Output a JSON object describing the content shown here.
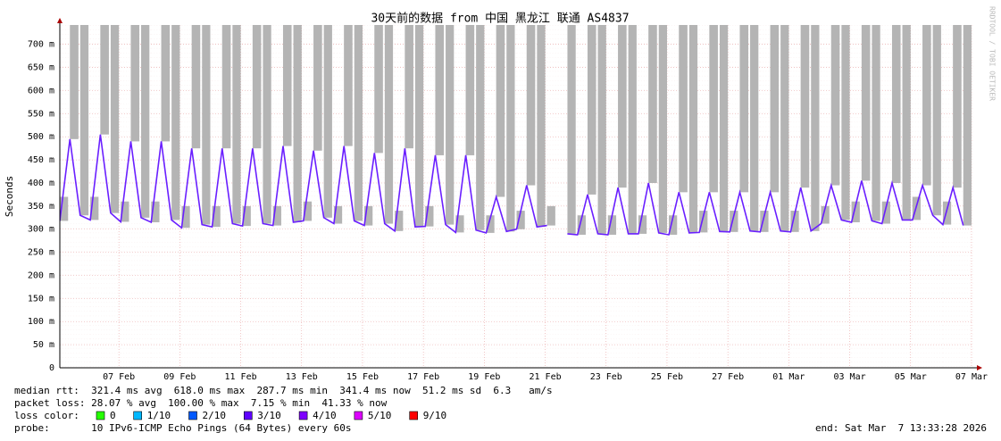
{
  "chart_data": {
    "type": "smoke",
    "title": "30天前的数据 from 中国 黑龙江 联通 AS4837",
    "ylabel": "Seconds",
    "credit": "RRDTOOL / TOBI OETIKER",
    "line_color": "#6a1fff",
    "smoke_color": "#b4b4b4",
    "grid": true,
    "ylim": [
      0,
      0.742
    ],
    "yticks": [
      0,
      {
        "value": 0.05,
        "label": "50 m"
      },
      {
        "value": 0.1,
        "label": "100 m"
      },
      {
        "value": 0.15,
        "label": "150 m"
      },
      {
        "value": 0.2,
        "label": "200 m"
      },
      {
        "value": 0.25,
        "label": "250 m"
      },
      {
        "value": 0.3,
        "label": "300 m"
      },
      {
        "value": 0.35,
        "label": "350 m"
      },
      {
        "value": 0.4,
        "label": "400 m"
      },
      {
        "value": 0.45,
        "label": "450 m"
      },
      {
        "value": 0.5,
        "label": "500 m"
      },
      {
        "value": 0.55,
        "label": "550 m"
      },
      {
        "value": 0.6,
        "label": "600 m"
      },
      {
        "value": 0.65,
        "label": "650 m"
      },
      {
        "value": 0.7,
        "label": "700 m"
      }
    ],
    "xlim": [
      0,
      30
    ],
    "xticks": [
      {
        "value": 1.94,
        "label": "07 Feb"
      },
      {
        "value": 3.94,
        "label": "09 Feb"
      },
      {
        "value": 5.94,
        "label": "11 Feb"
      },
      {
        "value": 7.94,
        "label": "13 Feb"
      },
      {
        "value": 9.94,
        "label": "15 Feb"
      },
      {
        "value": 11.94,
        "label": "17 Feb"
      },
      {
        "value": 13.94,
        "label": "19 Feb"
      },
      {
        "value": 15.94,
        "label": "21 Feb"
      },
      {
        "value": 17.94,
        "label": "23 Feb"
      },
      {
        "value": 19.94,
        "label": "25 Feb"
      },
      {
        "value": 21.94,
        "label": "27 Feb"
      },
      {
        "value": 23.94,
        "label": "01 Mar"
      },
      {
        "value": 25.94,
        "label": "03 Mar"
      },
      {
        "value": 27.94,
        "label": "05 Mar"
      },
      {
        "value": 29.94,
        "label": "07 Mar"
      }
    ],
    "x": [
      0,
      0.33,
      0.67,
      1,
      1.33,
      1.67,
      2,
      2.33,
      2.67,
      3,
      3.33,
      3.67,
      4,
      4.33,
      4.67,
      5,
      5.33,
      5.67,
      6,
      6.33,
      6.67,
      7,
      7.33,
      7.67,
      8,
      8.33,
      8.67,
      9,
      9.33,
      9.67,
      10,
      10.33,
      10.67,
      11,
      11.33,
      11.67,
      12,
      12.33,
      12.67,
      13,
      13.33,
      13.67,
      14,
      14.33,
      14.67,
      15,
      15.33,
      15.67,
      16,
      16.33,
      16.67,
      17,
      17.33,
      17.67,
      18,
      18.33,
      18.67,
      19,
      19.33,
      19.67,
      20,
      20.33,
      20.67,
      21,
      21.33,
      21.67,
      22,
      22.33,
      22.67,
      23,
      23.33,
      23.67,
      24,
      24.33,
      24.67,
      25,
      25.33,
      25.67,
      26,
      26.33,
      26.67,
      27,
      27.33,
      27.67,
      28,
      28.33,
      28.67,
      29,
      29.33,
      29.67
    ],
    "values": [
      0.318,
      0.495,
      0.33,
      0.32,
      0.505,
      0.335,
      0.316,
      0.49,
      0.325,
      0.315,
      0.49,
      0.32,
      0.303,
      0.475,
      0.31,
      0.305,
      0.475,
      0.312,
      0.307,
      0.475,
      0.312,
      0.308,
      0.48,
      0.315,
      0.318,
      0.47,
      0.325,
      0.312,
      0.48,
      0.318,
      0.308,
      0.465,
      0.312,
      0.296,
      0.475,
      0.305,
      0.306,
      0.46,
      0.31,
      0.293,
      0.46,
      0.298,
      0.292,
      0.37,
      0.295,
      0.3,
      0.395,
      0.305,
      0.308,
      null,
      0.29,
      0.288,
      0.375,
      0.29,
      0.288,
      0.39,
      0.29,
      0.29,
      0.4,
      0.292,
      0.288,
      0.38,
      0.292,
      0.293,
      0.38,
      0.295,
      0.294,
      0.38,
      0.296,
      0.294,
      0.38,
      0.296,
      0.294,
      0.39,
      0.296,
      0.312,
      0.395,
      0.32,
      0.315,
      0.405,
      0.318,
      0.312,
      0.4,
      0.32,
      0.32,
      0.395,
      0.33,
      0.31,
      0.39,
      0.308
    ],
    "max": [
      0.37,
      0.8,
      0.8,
      0.37,
      0.8,
      0.8,
      0.36,
      0.8,
      0.8,
      0.36,
      0.8,
      0.8,
      0.35,
      0.8,
      0.8,
      0.35,
      0.8,
      0.8,
      0.35,
      0.8,
      0.8,
      0.35,
      0.8,
      0.8,
      0.36,
      0.8,
      0.8,
      0.35,
      0.8,
      0.8,
      0.35,
      0.8,
      0.8,
      0.34,
      0.8,
      0.8,
      0.35,
      0.8,
      0.8,
      0.33,
      0.8,
      0.8,
      0.33,
      0.8,
      0.8,
      0.34,
      0.8,
      0.8,
      0.35,
      null,
      0.8,
      0.33,
      0.8,
      0.8,
      0.33,
      0.8,
      0.8,
      0.33,
      0.8,
      0.8,
      0.33,
      0.8,
      0.8,
      0.34,
      0.8,
      0.8,
      0.34,
      0.8,
      0.8,
      0.34,
      0.8,
      0.8,
      0.34,
      0.8,
      0.8,
      0.35,
      0.8,
      0.8,
      0.36,
      0.8,
      0.8,
      0.36,
      0.8,
      0.8,
      0.37,
      0.8,
      0.8,
      0.36,
      0.8,
      0.8
    ],
    "stats": [
      "median rtt:  321.4 ms avg  618.0 ms max  287.7 ms min  341.4 ms now  51.2 ms sd  6.3   am/s",
      "packet loss: 28.07 % avg  100.00 % max  7.15 % min  41.33 % now"
    ],
    "loss_color": {
      "label": "loss color:",
      "items": [
        {
          "label": "0",
          "color": "#26ff00"
        },
        {
          "label": "1/10",
          "color": "#00b8ff"
        },
        {
          "label": "2/10",
          "color": "#0059ff"
        },
        {
          "label": "3/10",
          "color": "#5e00ff"
        },
        {
          "label": "4/10",
          "color": "#7e00ff"
        },
        {
          "label": "5/10",
          "color": "#dd00ff"
        },
        {
          "label": "9/10",
          "color": "#ff0000"
        }
      ]
    },
    "probe": "probe:       10 IPv6-ICMP Echo Pings (64 Bytes) every 60s",
    "end": "end: Sat Mar  7 13:33:28 2026"
  }
}
